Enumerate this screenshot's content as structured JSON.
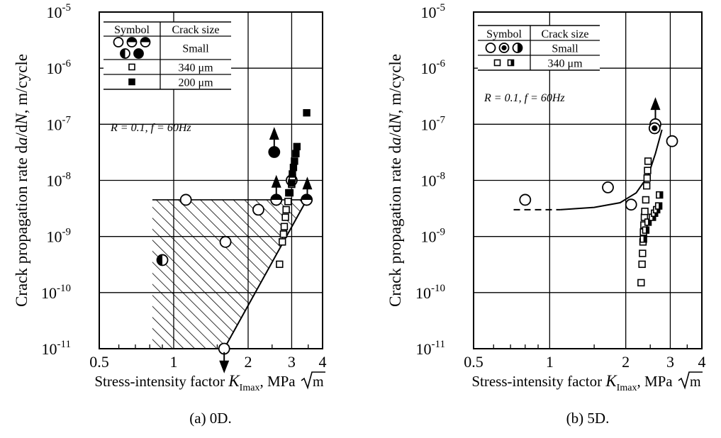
{
  "chart_data": [
    {
      "type": "scatter",
      "caption": "(a) 0D.",
      "xlabel_prefix": "Stress-intensity factor ",
      "xlabel_var": "K",
      "xlabel_sub": "Imax",
      "xlabel_unit": ", MPa",
      "sqrt_m": "m",
      "ylabel_prefix": "Crack propagation rate d",
      "ylabel_a": "a",
      "ylabel_mid": "/d",
      "ylabel_N": "N",
      "ylabel_suffix": ", m/cycle",
      "x_scale": "log",
      "y_scale": "log",
      "xlim": [
        0.5,
        4
      ],
      "ylim": [
        1e-11,
        1e-05
      ],
      "x_ticks": [
        {
          "value": 0.5,
          "label": "0.5"
        },
        {
          "value": 1,
          "label": "1"
        },
        {
          "value": 2,
          "label": "2"
        },
        {
          "value": 3,
          "label": "3"
        },
        {
          "value": 4,
          "label": "4"
        }
      ],
      "y_ticks": [
        {
          "value": 1e-11,
          "label": "10",
          "exp": "-11"
        },
        {
          "value": 1e-10,
          "label": "10",
          "exp": "-10"
        },
        {
          "value": 1e-09,
          "label": "10",
          "exp": "-9"
        },
        {
          "value": 1e-08,
          "label": "10",
          "exp": "-8"
        },
        {
          "value": 1e-07,
          "label": "10",
          "exp": "-7"
        },
        {
          "value": 1e-06,
          "label": "10",
          "exp": "-6"
        },
        {
          "value": 1e-05,
          "label": "10",
          "exp": "-5"
        }
      ],
      "grid_x": [
        1,
        2,
        3
      ],
      "grid_y": [
        1e-10,
        1e-09,
        1e-08,
        1e-07,
        1e-06
      ],
      "legend": {
        "header": [
          "Symbol",
          "Crack size"
        ],
        "rows": [
          {
            "symbols": [
              "open_circle",
              "half_top_circle",
              "half_top_circle",
              "half_left_circle",
              "filled_circle"
            ],
            "label": "Small"
          },
          {
            "symbols": [
              "open_square"
            ],
            "label": "340 μm"
          },
          {
            "symbols": [
              "filled_square"
            ],
            "label": "200 μm"
          }
        ],
        "condition": "R = 0.1, f = 60Hz"
      },
      "hatched_region": [
        [
          0.82,
          4.5e-09
        ],
        [
          3.45,
          4.5e-09
        ],
        [
          1.6,
          1e-11
        ],
        [
          0.82,
          1e-11
        ]
      ],
      "series": [
        {
          "marker": "open_circle",
          "points": [
            [
              1.12,
              4.5e-09
            ],
            [
              1.62,
              8e-10
            ],
            [
              2.2,
              3e-09
            ],
            [
              2.6,
              4.5e-09
            ],
            [
              3.0,
              1e-08
            ],
            [
              3.45,
              4.5e-09
            ],
            [
              1.6,
              1e-11
            ]
          ]
        },
        {
          "marker": "half_left_circle",
          "points": [
            [
              0.9,
              3.8e-10
            ]
          ]
        },
        {
          "marker": "filled_circle",
          "points": [
            [
              2.55,
              3.2e-08
            ]
          ]
        },
        {
          "marker": "half_top_circle",
          "points": [
            [
              2.6,
              4.5e-09
            ],
            [
              3.45,
              4.5e-09
            ]
          ]
        },
        {
          "marker": "open_square",
          "points": [
            [
              2.68,
              3.2e-10
            ],
            [
              2.75,
              8e-10
            ],
            [
              2.78,
              1.1e-09
            ],
            [
              2.8,
              1.5e-09
            ],
            [
              2.83,
              2.2e-09
            ],
            [
              2.85,
              3e-09
            ],
            [
              2.9,
              4.2e-09
            ],
            [
              2.95,
              6e-09
            ],
            [
              3.0,
              8.5e-09
            ],
            [
              3.02,
              1.1e-08
            ]
          ]
        },
        {
          "marker": "filled_square",
          "points": [
            [
              2.92,
              6e-09
            ],
            [
              3.0,
              9e-09
            ],
            [
              3.02,
              1.3e-08
            ],
            [
              3.05,
              1.7e-08
            ],
            [
              3.08,
              2.2e-08
            ],
            [
              3.12,
              3e-08
            ],
            [
              3.15,
              4e-08
            ],
            [
              3.45,
              1.6e-07
            ]
          ]
        }
      ],
      "arrows": [
        {
          "x": 2.55,
          "y": 5e-08,
          "dir": "up"
        },
        {
          "x": 2.6,
          "y": 7e-09,
          "dir": "up"
        },
        {
          "x": 3.47,
          "y": 6.5e-09,
          "dir": "up"
        },
        {
          "x": 1.6,
          "y": 6.5e-12,
          "dir": "down"
        }
      ],
      "lines": [
        {
          "style": "solid",
          "points": [
            [
              1.6,
              1e-11
            ],
            [
              3.45,
              4.5e-09
            ]
          ]
        }
      ]
    },
    {
      "type": "scatter",
      "caption": "(b) 5D.",
      "xlabel_prefix": "Stress-intensity factor ",
      "xlabel_var": "K",
      "xlabel_sub": "Imax",
      "xlabel_unit": ", MPa",
      "sqrt_m": "m",
      "ylabel_prefix": "Crack propagation rate d",
      "ylabel_a": "a",
      "ylabel_mid": "/d",
      "ylabel_N": "N",
      "ylabel_suffix": ", m/cycle",
      "x_scale": "log",
      "y_scale": "log",
      "xlim": [
        0.5,
        4
      ],
      "ylim": [
        1e-11,
        1e-05
      ],
      "x_ticks": [
        {
          "value": 0.5,
          "label": "0.5"
        },
        {
          "value": 1,
          "label": "1"
        },
        {
          "value": 2,
          "label": "2"
        },
        {
          "value": 3,
          "label": "3"
        },
        {
          "value": 4,
          "label": "4"
        }
      ],
      "y_ticks": [
        {
          "value": 1e-11,
          "label": "10",
          "exp": "-11"
        },
        {
          "value": 1e-10,
          "label": "10",
          "exp": "-10"
        },
        {
          "value": 1e-09,
          "label": "10",
          "exp": "-9"
        },
        {
          "value": 1e-08,
          "label": "10",
          "exp": "-8"
        },
        {
          "value": 1e-07,
          "label": "10",
          "exp": "-7"
        },
        {
          "value": 1e-06,
          "label": "10",
          "exp": "-6"
        },
        {
          "value": 1e-05,
          "label": "10",
          "exp": "-5"
        }
      ],
      "grid_x": [
        1,
        2,
        3
      ],
      "grid_y": [
        1e-10,
        1e-09,
        1e-08,
        1e-07,
        1e-06
      ],
      "legend": {
        "header": [
          "Symbol",
          "Crack size"
        ],
        "rows": [
          {
            "symbols": [
              "open_circle",
              "half_center_circle",
              "half_right_circle"
            ],
            "label": "Small"
          },
          {
            "symbols": [
              "open_square",
              "half_square"
            ],
            "label": "340 μm"
          }
        ],
        "condition": "R = 0.1, f = 60Hz"
      },
      "hatched_region": [],
      "series": [
        {
          "marker": "open_circle",
          "points": [
            [
              0.8,
              4.5e-09
            ],
            [
              1.7,
              7.5e-09
            ],
            [
              2.1,
              3.7e-09
            ],
            [
              3.05,
              5e-08
            ],
            [
              2.62,
              1e-07
            ]
          ]
        },
        {
          "marker": "half_center_circle",
          "points": [
            [
              2.6,
              8.5e-08
            ]
          ]
        },
        {
          "marker": "open_square",
          "points": [
            [
              2.3,
              1.5e-10
            ],
            [
              2.32,
              3.2e-10
            ],
            [
              2.33,
              5e-10
            ],
            [
              2.34,
              8e-10
            ],
            [
              2.35,
              1.2e-09
            ],
            [
              2.36,
              1.6e-09
            ],
            [
              2.37,
              2.2e-09
            ],
            [
              2.38,
              2.8e-09
            ],
            [
              2.4,
              4.5e-09
            ],
            [
              2.42,
              8e-09
            ],
            [
              2.43,
              1.1e-08
            ],
            [
              2.44,
              1.5e-08
            ],
            [
              2.45,
              2.2e-08
            ]
          ]
        },
        {
          "marker": "half_square",
          "points": [
            [
              2.35,
              9e-10
            ],
            [
              2.4,
              1.3e-09
            ],
            [
              2.45,
              1.8e-09
            ],
            [
              2.55,
              2.2e-09
            ],
            [
              2.6,
              2.6e-09
            ],
            [
              2.65,
              3e-09
            ],
            [
              2.7,
              3.5e-09
            ],
            [
              2.72,
              5.5e-09
            ]
          ]
        }
      ],
      "arrows": [
        {
          "x": 2.62,
          "y": 1.7e-07,
          "dir": "up"
        }
      ],
      "lines": [
        {
          "style": "dashed",
          "points": [
            [
              0.72,
              3e-09
            ],
            [
              1.1,
              3e-09
            ]
          ]
        },
        {
          "style": "solid",
          "points": [
            [
              1.1,
              3e-09
            ],
            [
              1.5,
              3.3e-09
            ],
            [
              1.9,
              4e-09
            ],
            [
              2.2,
              6e-09
            ],
            [
              2.45,
              1.2e-08
            ],
            [
              2.62,
              3e-08
            ],
            [
              2.78,
              8e-08
            ]
          ]
        }
      ]
    }
  ]
}
